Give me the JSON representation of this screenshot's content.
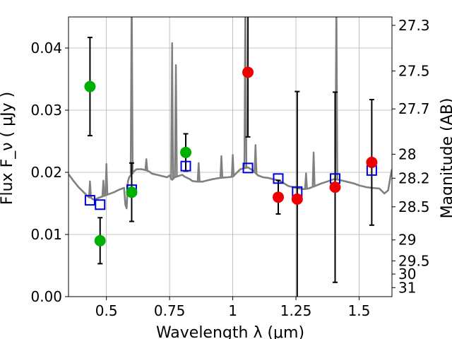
{
  "chart_data": {
    "type": "scatter",
    "xlabel": "Wavelength λ (μm)",
    "ylabel": "Flux  F_ν  ( μJy )",
    "y2label": "Magnitude (AB)",
    "xlim": [
      0.35,
      1.63
    ],
    "ylim": [
      0.0,
      0.045
    ],
    "x_ticks": [
      0.5,
      0.75,
      1.0,
      1.25,
      1.5
    ],
    "x_tick_labels": [
      "0.5",
      "0.75",
      "1",
      "1.25",
      "1.5"
    ],
    "y_ticks": [
      0.0,
      0.01,
      0.02,
      0.03,
      0.04
    ],
    "y_tick_labels": [
      "0.00",
      "0.01",
      "0.02",
      "0.03",
      "0.04"
    ],
    "mag_ticks": [
      27.3,
      27.5,
      27.7,
      28,
      28.2,
      28.5,
      29,
      29.5,
      30,
      31
    ],
    "mag_tick_labels": [
      "27.3",
      "27.5",
      "27.7",
      "28",
      "28.2",
      "28.5",
      "29",
      "29.5",
      "30",
      "31"
    ],
    "grid": true,
    "colors": {
      "model_line": "#808080",
      "green_points": "#00b000",
      "red_points": "#ee0000",
      "model_photometry": "#0000dd",
      "errorbars": "#000000"
    },
    "model_spectrum": {
      "x": [
        0.35,
        0.37,
        0.39,
        0.41,
        0.43,
        0.44,
        0.445,
        0.45,
        0.47,
        0.49,
        0.51,
        0.53,
        0.55,
        0.57,
        0.575,
        0.58,
        0.585,
        0.59,
        0.6,
        0.61,
        0.62,
        0.64,
        0.66,
        0.67,
        0.68,
        0.7,
        0.72,
        0.74,
        0.75,
        0.76,
        0.77,
        0.8,
        0.81,
        0.83,
        0.84,
        0.86,
        0.88,
        0.9,
        0.92,
        0.95,
        0.98,
        1.0,
        1.03,
        1.06,
        1.08,
        1.1,
        1.12,
        1.14,
        1.16,
        1.18,
        1.2,
        1.22,
        1.25,
        1.28,
        1.3,
        1.32,
        1.35,
        1.38,
        1.4,
        1.42,
        1.45,
        1.48,
        1.5,
        1.53,
        1.55,
        1.58,
        1.6,
        1.615,
        1.625,
        1.63
      ],
      "y": [
        0.0197,
        0.0186,
        0.0176,
        0.0168,
        0.016,
        0.0159,
        0.0157,
        0.0156,
        0.0159,
        0.0162,
        0.0165,
        0.0168,
        0.0172,
        0.0175,
        0.0148,
        0.0142,
        0.0185,
        0.0192,
        0.0197,
        0.0202,
        0.0205,
        0.0205,
        0.0203,
        0.0201,
        0.0198,
        0.0196,
        0.0194,
        0.0192,
        0.0195,
        0.0188,
        0.0192,
        0.0196,
        0.0193,
        0.0189,
        0.0186,
        0.0185,
        0.0185,
        0.0187,
        0.0189,
        0.0191,
        0.0192,
        0.0193,
        0.0205,
        0.0208,
        0.0203,
        0.0195,
        0.0192,
        0.0191,
        0.0189,
        0.0187,
        0.0183,
        0.0178,
        0.0175,
        0.0173,
        0.0174,
        0.0177,
        0.0182,
        0.0186,
        0.0189,
        0.0188,
        0.0185,
        0.0182,
        0.0179,
        0.0176,
        0.0175,
        0.0174,
        0.0166,
        0.0171,
        0.0195,
        0.0205
      ]
    },
    "emission_lines": [
      {
        "x": 0.435,
        "height": 0.0026
      },
      {
        "x": 0.488,
        "height": 0.0025
      },
      {
        "x": 0.5,
        "height": 0.005
      },
      {
        "x": 0.6,
        "height": 0.031
      },
      {
        "x": 0.658,
        "height": 0.0018
      },
      {
        "x": 0.76,
        "height": 0.022
      },
      {
        "x": 0.775,
        "height": 0.018
      },
      {
        "x": 0.865,
        "height": 0.003
      },
      {
        "x": 0.955,
        "height": 0.0035
      },
      {
        "x": 1.0,
        "height": 0.0035
      },
      {
        "x": 1.05,
        "height": 0.03
      },
      {
        "x": 1.09,
        "height": 0.0045
      },
      {
        "x": 1.29,
        "height": 0.0025
      },
      {
        "x": 1.32,
        "height": 0.0055
      },
      {
        "x": 1.41,
        "height": 0.03
      }
    ],
    "model_photometry": {
      "x": [
        0.435,
        0.475,
        0.6,
        0.814,
        1.06,
        1.18,
        1.255,
        1.405,
        1.55
      ],
      "y": [
        0.0155,
        0.0148,
        0.0172,
        0.021,
        0.0207,
        0.019,
        0.0169,
        0.019,
        0.0203
      ]
    },
    "series": [
      {
        "color": "green",
        "x": [
          0.435,
          0.475,
          0.6,
          0.814
        ],
        "y": [
          0.0338,
          0.009,
          0.0168,
          0.0232
        ],
        "yerr": [
          0.0079,
          0.0037,
          0.0047,
          0.003
        ]
      },
      {
        "color": "red",
        "x": [
          1.06,
          1.18,
          1.255,
          1.405,
          1.55
        ],
        "y": [
          0.0361,
          0.016,
          0.0157,
          0.0176,
          0.0216
        ],
        "yerr": [
          0.0104,
          0.0027,
          0.0173,
          0.0153,
          0.0101
        ]
      }
    ]
  }
}
